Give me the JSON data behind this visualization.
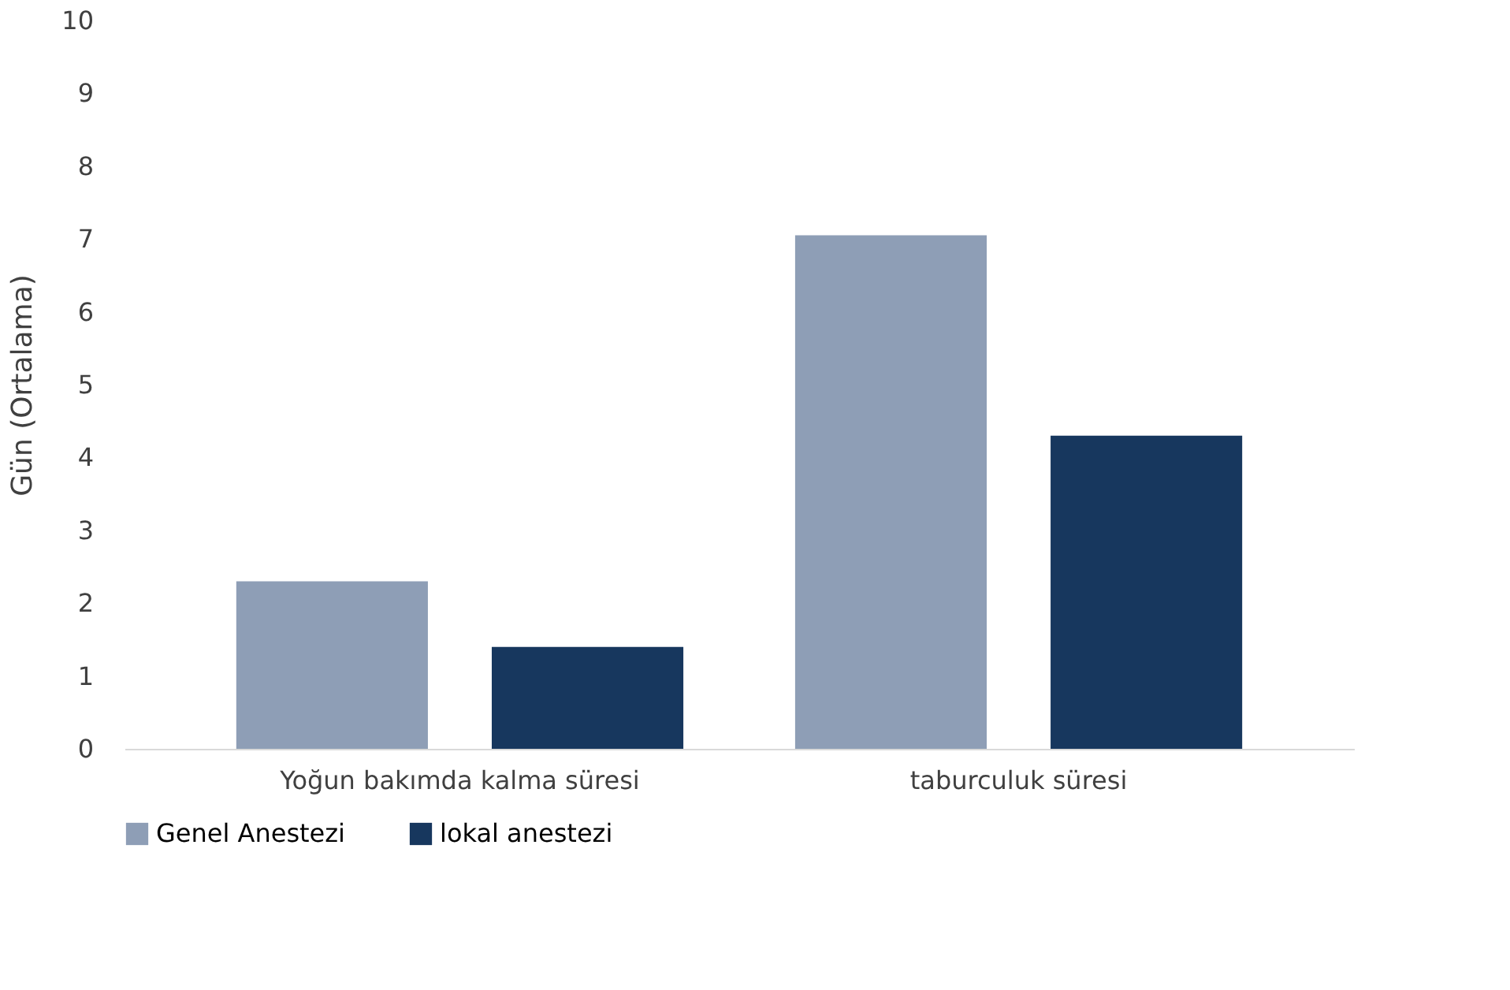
{
  "chart_data": {
    "type": "bar",
    "ylabel": "Gün (Ortalama)",
    "categories": [
      "Yoğun bakımda kalma süresi",
      "taburculuk süresi"
    ],
    "series": [
      {
        "name": "Genel Anestezi",
        "color": "#8e9eb6",
        "values": [
          2.3,
          7.05
        ]
      },
      {
        "name": "lokal anestezi",
        "color": "#17375e",
        "values": [
          1.4,
          4.3
        ]
      }
    ],
    "ylim": [
      0,
      10
    ],
    "yticks": [
      0,
      1,
      2,
      3,
      4,
      5,
      6,
      7,
      8,
      9,
      10
    ],
    "legend": "bottom",
    "grid": false
  }
}
